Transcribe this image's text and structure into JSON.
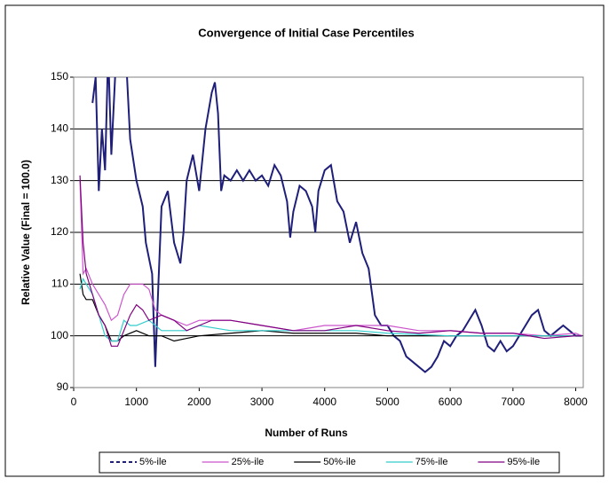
{
  "chart_data": {
    "type": "line",
    "title": "Convergence of Initial Case Percentiles",
    "x_label": "Number of Runs",
    "y_label": "Relative Value (Final = 100.0)",
    "xlim": [
      0,
      8120
    ],
    "xticks": [
      0,
      1000,
      2000,
      3000,
      4000,
      5000,
      6000,
      7000,
      8000
    ],
    "ylim": [
      90,
      150
    ],
    "yticks": [
      90,
      100,
      110,
      120,
      130,
      140,
      150
    ],
    "grid": true,
    "legend": "bottom",
    "series": [
      {
        "name": "5%-ile",
        "color": "#1f1f7a",
        "dash": true,
        "x": [
          300,
          350,
          400,
          450,
          500,
          550,
          600,
          700,
          850,
          900,
          1000,
          1100,
          1150,
          1200,
          1250,
          1300,
          1350,
          1400,
          1500,
          1600,
          1700,
          1750,
          1800,
          1900,
          2000,
          2100,
          2200,
          2250,
          2300,
          2350,
          2400,
          2500,
          2600,
          2700,
          2800,
          2900,
          3000,
          3100,
          3200,
          3300,
          3400,
          3450,
          3500,
          3600,
          3700,
          3800,
          3850,
          3900,
          4000,
          4100,
          4200,
          4300,
          4400,
          4500,
          4600,
          4700,
          4800,
          4900,
          5000,
          5100,
          5200,
          5300,
          5400,
          5500,
          5600,
          5700,
          5800,
          5900,
          6000,
          6100,
          6200,
          6300,
          6400,
          6500,
          6600,
          6700,
          6800,
          6900,
          7000,
          7100,
          7200,
          7300,
          7400,
          7500,
          7600,
          7700,
          7800,
          7900,
          8000,
          8100
        ],
        "values": [
          145,
          150,
          128,
          140,
          132,
          155,
          135,
          160,
          150,
          138,
          130,
          125,
          118,
          115,
          112,
          94,
          110,
          125,
          128,
          118,
          114,
          120,
          130,
          135,
          128,
          140,
          147,
          149,
          143,
          128,
          131,
          130,
          132,
          130,
          132,
          130,
          131,
          129,
          133,
          131,
          126,
          119,
          124,
          129,
          128,
          125,
          120,
          128,
          132,
          133,
          126,
          124,
          118,
          122,
          116,
          113,
          104,
          102,
          102,
          100,
          99,
          96,
          95,
          94,
          93,
          94,
          96,
          99,
          98,
          100,
          101,
          103,
          105,
          102,
          98,
          97,
          99,
          97,
          98,
          100,
          102,
          104,
          105,
          101,
          100,
          101,
          102,
          101,
          100,
          100
        ]
      },
      {
        "name": "25%-ile",
        "color": "#cc55cc",
        "x": [
          100,
          150,
          200,
          300,
          400,
          500,
          600,
          700,
          800,
          900,
          1000,
          1100,
          1200,
          1300,
          1400,
          1600,
          1800,
          2000,
          2500,
          3000,
          3500,
          4000,
          4500,
          5000,
          5500,
          6000,
          6500,
          7000,
          7500,
          8000,
          8100
        ],
        "values": [
          130,
          112,
          113,
          110,
          108,
          106,
          103,
          104,
          108,
          110,
          110,
          110,
          109,
          105,
          104,
          103,
          102,
          103,
          103,
          102,
          101,
          102,
          102,
          102,
          101,
          101,
          100.5,
          100.5,
          100,
          100.5,
          100
        ]
      },
      {
        "name": "50%-ile",
        "color": "#000000",
        "x": [
          100,
          150,
          200,
          300,
          400,
          500,
          600,
          700,
          800,
          1000,
          1200,
          1400,
          1600,
          1800,
          2000,
          2500,
          3000,
          3500,
          4000,
          4500,
          5000,
          6000,
          7000,
          8000,
          8100
        ],
        "values": [
          112,
          108,
          107,
          107,
          104,
          102,
          99,
          99,
          100,
          101,
          100,
          100,
          99,
          99.5,
          100,
          100.5,
          101,
          100.5,
          100.5,
          100.5,
          100,
          100,
          100,
          100,
          100
        ]
      },
      {
        "name": "75%-ile",
        "color": "#33cccc",
        "x": [
          100,
          150,
          200,
          300,
          400,
          500,
          600,
          700,
          800,
          900,
          1000,
          1200,
          1400,
          1600,
          1800,
          2000,
          2500,
          3000,
          3500,
          4000,
          4500,
          5000,
          6000,
          7000,
          8000,
          8100
        ],
        "values": [
          109,
          111,
          110,
          108,
          104,
          100,
          99,
          99,
          103,
          102,
          102,
          103,
          101,
          101,
          101,
          102,
          101,
          101,
          101,
          101,
          101,
          100.5,
          100,
          100,
          100,
          100
        ]
      },
      {
        "name": "95%-ile",
        "color": "#800080",
        "x": [
          100,
          150,
          200,
          300,
          400,
          500,
          600,
          700,
          800,
          900,
          1000,
          1100,
          1200,
          1400,
          1600,
          1800,
          2000,
          2200,
          2500,
          3000,
          3500,
          4000,
          4500,
          5000,
          5500,
          6000,
          6500,
          7000,
          7500,
          8000,
          8100
        ],
        "values": [
          131,
          118,
          112,
          108,
          104,
          102,
          98,
          98,
          101,
          104,
          106,
          105,
          103,
          104,
          103,
          101,
          102,
          103,
          103,
          102,
          101,
          101,
          102,
          101,
          100.5,
          101,
          100.5,
          100.5,
          99.5,
          100,
          100
        ]
      }
    ]
  }
}
